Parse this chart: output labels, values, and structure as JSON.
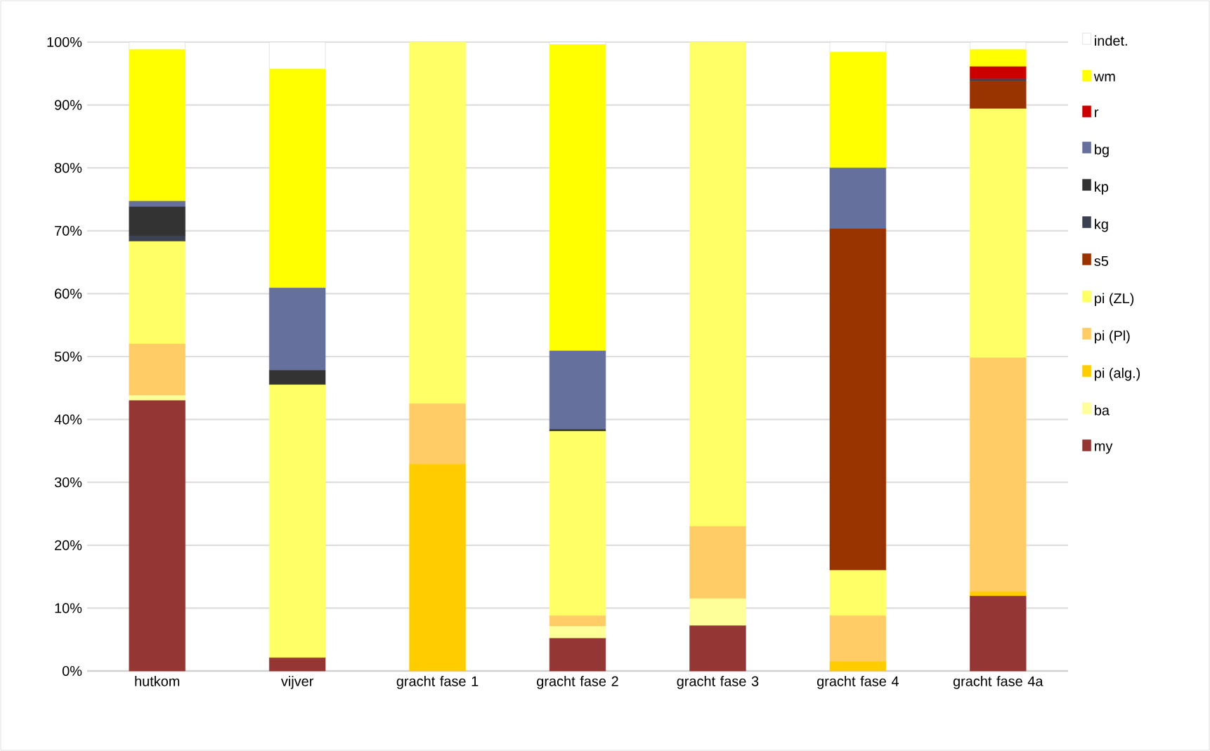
{
  "chart_data": {
    "type": "bar",
    "stacked": true,
    "categories": [
      "hutkom",
      "vijver",
      "gracht fase 1",
      "gracht fase 2",
      "gracht fase 3",
      "gracht fase 4",
      "gracht fase 4a"
    ],
    "series": [
      {
        "name": "my",
        "color": "#943634",
        "values": [
          43.0,
          2.1,
          0,
          5.2,
          7.2,
          0,
          11.9
        ]
      },
      {
        "name": "ba",
        "color": "#ffff99",
        "values": [
          0.8,
          0,
          0,
          1.9,
          4.3,
          0,
          0
        ]
      },
      {
        "name": "pi (alg.)",
        "color": "#ffcc00",
        "values": [
          0,
          0,
          32.9,
          0,
          0,
          1.5,
          0.7
        ]
      },
      {
        "name": "pi (Pl)",
        "color": "#ffcc66",
        "values": [
          8.2,
          0,
          9.6,
          1.7,
          11.5,
          7.3,
          37.2
        ]
      },
      {
        "name": "pi (ZL)",
        "color": "#ffff66",
        "values": [
          16.3,
          43.4,
          57.5,
          29.3,
          77.0,
          7.2,
          39.6
        ]
      },
      {
        "name": "s5",
        "color": "#993300",
        "values": [
          0,
          0,
          0,
          0,
          0,
          54.3,
          4.4
        ]
      },
      {
        "name": "kg",
        "color": "#3b4150",
        "values": [
          0.9,
          0,
          0,
          0,
          0,
          0,
          0.3
        ]
      },
      {
        "name": "kp",
        "color": "#333333",
        "values": [
          4.6,
          2.3,
          0,
          0.3,
          0,
          0,
          0
        ]
      },
      {
        "name": "bg",
        "color": "#66709c",
        "values": [
          0.9,
          13.1,
          0,
          12.5,
          0,
          9.7,
          0
        ]
      },
      {
        "name": "r",
        "color": "#cc0000",
        "values": [
          0,
          0,
          0,
          0,
          0,
          0,
          2.0
        ]
      },
      {
        "name": "wm",
        "color": "#ffff00",
        "values": [
          24.1,
          34.8,
          0,
          48.7,
          0,
          18.4,
          2.7
        ]
      },
      {
        "name": "indet.",
        "color": "#ffffff",
        "values": [
          1.2,
          4.3,
          0,
          0.4,
          0,
          1.6,
          1.2
        ]
      }
    ],
    "ylim": [
      0,
      100
    ],
    "yticks": [
      {
        "value": 0,
        "label": "0%"
      },
      {
        "value": 10,
        "label": "10%"
      },
      {
        "value": 20,
        "label": "20%"
      },
      {
        "value": 30,
        "label": "30%"
      },
      {
        "value": 40,
        "label": "40%"
      },
      {
        "value": 50,
        "label": "50%"
      },
      {
        "value": 60,
        "label": "60%"
      },
      {
        "value": 70,
        "label": "70%"
      },
      {
        "value": 80,
        "label": "80%"
      },
      {
        "value": 90,
        "label": "90%"
      },
      {
        "value": 100,
        "label": "100%"
      }
    ],
    "grid": "y",
    "legend": "right"
  }
}
